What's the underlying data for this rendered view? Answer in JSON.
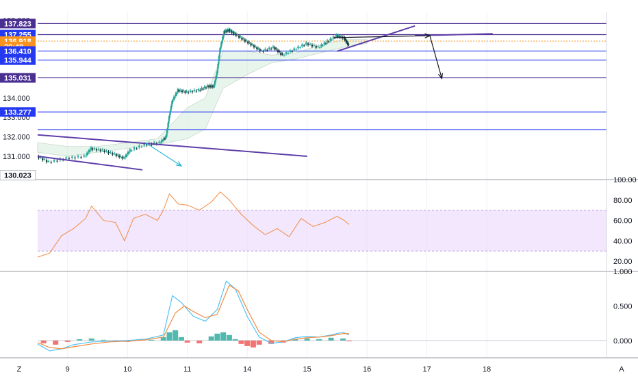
{
  "chart_data": {
    "type": "candlestick",
    "x_labels": [
      "9",
      "10",
      "11",
      "14",
      "15",
      "16",
      "17",
      "18"
    ],
    "corner_labels": {
      "left": "Z",
      "right": "A"
    },
    "price_pane": {
      "y_ticks": [
        "138.000",
        "137.000",
        "136.000",
        "135.000",
        "134.000",
        "133.000",
        "132.000",
        "131.000"
      ],
      "ylim": [
        129.8,
        138.4
      ],
      "price_tags": [
        {
          "text": "137.823",
          "value": 137.823,
          "color": "#4a2e91"
        },
        {
          "text": "137.255",
          "value": 137.255,
          "color": "#2439f2"
        },
        {
          "text": "136.918",
          "value": 136.918,
          "color": "#f7931e"
        },
        {
          "text": "29:48",
          "value": 136.64,
          "color": "#f7931e"
        },
        {
          "text": "136.410",
          "value": 136.41,
          "color": "#2439f2"
        },
        {
          "text": "135.944",
          "value": 135.944,
          "color": "#2439f2"
        },
        {
          "text": "135.031",
          "value": 135.031,
          "color": "#4a2e91"
        },
        {
          "text": "133.277",
          "value": 133.277,
          "color": "#2439f2"
        },
        {
          "text": "130.023",
          "value": 130.023,
          "color": "#ffffff"
        }
      ],
      "horizontal_levels": [
        137.823,
        137.255,
        136.41,
        135.944,
        135.031,
        133.277,
        132.36
      ],
      "current_price": 136.918,
      "price_path": [
        [
          8.5,
          131.0
        ],
        [
          8.7,
          130.7
        ],
        [
          9.0,
          130.9
        ],
        [
          9.3,
          131.0
        ],
        [
          9.4,
          131.4
        ],
        [
          9.6,
          131.3
        ],
        [
          9.8,
          131.1
        ],
        [
          9.95,
          130.9
        ],
        [
          10.05,
          131.3
        ],
        [
          10.3,
          131.6
        ],
        [
          10.55,
          131.7
        ],
        [
          10.65,
          132.0
        ],
        [
          10.7,
          133.0
        ],
        [
          10.75,
          133.8
        ],
        [
          10.85,
          134.4
        ],
        [
          11.0,
          134.3
        ],
        [
          11.2,
          134.4
        ],
        [
          11.35,
          134.6
        ],
        [
          11.45,
          134.6
        ],
        [
          11.5,
          135.3
        ],
        [
          11.55,
          136.5
        ],
        [
          11.62,
          137.4
        ],
        [
          11.7,
          137.5
        ],
        [
          11.8,
          137.3
        ],
        [
          11.95,
          137.0
        ],
        [
          12.1,
          136.7
        ],
        [
          12.25,
          136.4
        ],
        [
          12.45,
          136.6
        ],
        [
          12.6,
          136.2
        ],
        [
          12.8,
          136.5
        ],
        [
          13.0,
          136.8
        ],
        [
          13.2,
          136.6
        ],
        [
          13.35,
          136.9
        ],
        [
          13.5,
          137.2
        ],
        [
          13.62,
          137.1
        ],
        [
          13.7,
          136.7
        ]
      ],
      "ichimoku_cloud": [
        [
          8.5,
          131.7,
          131.2
        ],
        [
          9.0,
          131.5,
          131.0
        ],
        [
          9.5,
          131.5,
          131.2
        ],
        [
          10.0,
          131.7,
          131.4
        ],
        [
          10.5,
          131.9,
          131.6
        ],
        [
          11.0,
          133.5,
          131.9
        ],
        [
          11.3,
          134.0,
          132.4
        ],
        [
          11.6,
          136.4,
          134.5
        ],
        [
          12.0,
          136.4,
          135.2
        ],
        [
          12.4,
          136.2,
          135.8
        ],
        [
          12.8,
          136.3,
          136.0
        ],
        [
          13.2,
          136.7,
          136.3
        ],
        [
          13.6,
          137.0,
          136.6
        ],
        [
          14.0,
          137.0,
          136.8
        ]
      ]
    },
    "drawings": [
      {
        "type": "trendline",
        "from": [
          8.5,
          132.1
        ],
        "to": [
          13.0,
          131.0
        ],
        "color": "#5e3ea8"
      },
      {
        "type": "trendline",
        "from": [
          8.5,
          131.0
        ],
        "to": [
          10.25,
          130.3
        ],
        "color": "#5e3ea8"
      },
      {
        "type": "trendline",
        "from": [
          13.5,
          136.4
        ],
        "to": [
          14.8,
          137.7
        ],
        "color": "#5e3ea8"
      },
      {
        "type": "trendline",
        "from": [
          14.8,
          137.2
        ],
        "to": [
          16.1,
          137.3
        ],
        "color": "#5e3ea8"
      },
      {
        "type": "arrow",
        "from": [
          10.3,
          131.7
        ],
        "to": [
          10.9,
          130.5
        ],
        "color": "#29b6d2"
      },
      {
        "type": "arrow",
        "from": [
          13.45,
          137.1
        ],
        "to": [
          15.05,
          137.2
        ],
        "color": "#131722"
      },
      {
        "type": "arrow",
        "from": [
          15.05,
          137.2
        ],
        "to": [
          15.25,
          135.0
        ],
        "color": "#131722"
      }
    ],
    "rsi_pane": {
      "y_ticks": [
        "100.00",
        "80.00",
        "60.00",
        "40.00",
        "20.00"
      ],
      "ylim": [
        10,
        100
      ],
      "band": [
        30,
        70
      ],
      "values": [
        [
          8.5,
          24
        ],
        [
          8.7,
          28
        ],
        [
          8.9,
          45
        ],
        [
          9.1,
          52
        ],
        [
          9.3,
          62
        ],
        [
          9.4,
          74
        ],
        [
          9.6,
          60
        ],
        [
          9.8,
          58
        ],
        [
          9.95,
          40
        ],
        [
          10.1,
          62
        ],
        [
          10.3,
          66
        ],
        [
          10.5,
          60
        ],
        [
          10.6,
          70
        ],
        [
          10.7,
          86
        ],
        [
          10.85,
          76
        ],
        [
          11.0,
          75
        ],
        [
          11.2,
          70
        ],
        [
          11.4,
          78
        ],
        [
          11.55,
          88
        ],
        [
          11.7,
          80
        ],
        [
          11.9,
          66
        ],
        [
          12.1,
          55
        ],
        [
          12.3,
          46
        ],
        [
          12.5,
          52
        ],
        [
          12.7,
          44
        ],
        [
          12.9,
          62
        ],
        [
          13.1,
          54
        ],
        [
          13.3,
          58
        ],
        [
          13.5,
          64
        ],
        [
          13.62,
          60
        ],
        [
          13.7,
          56
        ]
      ]
    },
    "macd_pane": {
      "y_ticks": [
        "1.000",
        "0.500",
        "0.000"
      ],
      "ylim": [
        -0.25,
        1.0
      ],
      "macd": [
        [
          8.5,
          -0.05
        ],
        [
          8.7,
          -0.15
        ],
        [
          8.9,
          -0.12
        ],
        [
          9.1,
          -0.06
        ],
        [
          9.4,
          -0.02
        ],
        [
          9.7,
          -0.01
        ],
        [
          10.0,
          0.0
        ],
        [
          10.3,
          0.02
        ],
        [
          10.6,
          0.08
        ],
        [
          10.75,
          0.65
        ],
        [
          10.9,
          0.55
        ],
        [
          11.1,
          0.35
        ],
        [
          11.3,
          0.28
        ],
        [
          11.5,
          0.45
        ],
        [
          11.65,
          0.86
        ],
        [
          11.8,
          0.75
        ],
        [
          12.0,
          0.35
        ],
        [
          12.2,
          0.05
        ],
        [
          12.4,
          -0.04
        ],
        [
          12.6,
          -0.02
        ],
        [
          12.8,
          0.04
        ],
        [
          13.0,
          0.06
        ],
        [
          13.2,
          0.05
        ],
        [
          13.4,
          0.08
        ],
        [
          13.6,
          0.12
        ],
        [
          13.7,
          0.08
        ]
      ],
      "signal": [
        [
          8.5,
          -0.03
        ],
        [
          8.7,
          -0.1
        ],
        [
          8.9,
          -0.12
        ],
        [
          9.1,
          -0.09
        ],
        [
          9.4,
          -0.05
        ],
        [
          9.7,
          -0.02
        ],
        [
          10.0,
          -0.01
        ],
        [
          10.3,
          0.01
        ],
        [
          10.6,
          0.05
        ],
        [
          10.8,
          0.4
        ],
        [
          10.95,
          0.5
        ],
        [
          11.1,
          0.42
        ],
        [
          11.3,
          0.33
        ],
        [
          11.5,
          0.38
        ],
        [
          11.7,
          0.8
        ],
        [
          11.85,
          0.72
        ],
        [
          12.0,
          0.45
        ],
        [
          12.2,
          0.12
        ],
        [
          12.4,
          0.0
        ],
        [
          12.6,
          -0.02
        ],
        [
          12.8,
          0.02
        ],
        [
          13.0,
          0.04
        ],
        [
          13.2,
          0.05
        ],
        [
          13.4,
          0.07
        ],
        [
          13.6,
          0.1
        ],
        [
          13.7,
          0.1
        ]
      ],
      "histogram": [
        [
          8.6,
          -0.04
        ],
        [
          8.8,
          -0.06
        ],
        [
          9.0,
          -0.02
        ],
        [
          9.2,
          0.02
        ],
        [
          9.4,
          0.03
        ],
        [
          9.6,
          0.01
        ],
        [
          9.8,
          -0.01
        ],
        [
          10.0,
          -0.02
        ],
        [
          10.2,
          0.02
        ],
        [
          10.4,
          0.01
        ],
        [
          10.6,
          0.05
        ],
        [
          10.7,
          0.12
        ],
        [
          10.8,
          0.15
        ],
        [
          10.9,
          0.05
        ],
        [
          11.0,
          -0.03
        ],
        [
          11.2,
          -0.04
        ],
        [
          11.4,
          0.06
        ],
        [
          11.5,
          0.1
        ],
        [
          11.6,
          0.12
        ],
        [
          11.7,
          0.08
        ],
        [
          11.8,
          0.02
        ],
        [
          11.9,
          -0.05
        ],
        [
          12.0,
          -0.08
        ],
        [
          12.1,
          -0.1
        ],
        [
          12.2,
          -0.06
        ],
        [
          12.4,
          -0.05
        ],
        [
          12.6,
          -0.03
        ],
        [
          12.8,
          0.02
        ],
        [
          13.0,
          0.03
        ],
        [
          13.2,
          0.02
        ],
        [
          13.4,
          0.04
        ],
        [
          13.6,
          0.03
        ],
        [
          13.7,
          -0.01
        ]
      ]
    }
  }
}
